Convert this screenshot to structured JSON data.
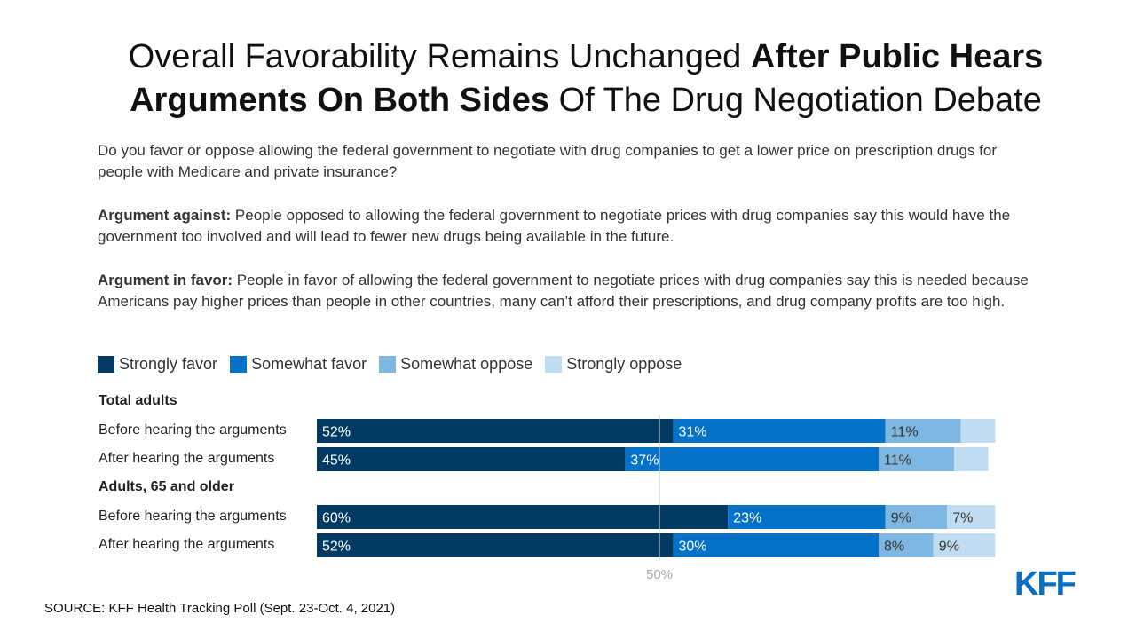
{
  "title": {
    "part1": "Overall Favorability Remains Unchanged ",
    "bold1": "After Public Hears Arguments On Both Sides",
    "part2": " Of The Drug Negotiation Debate"
  },
  "question": "Do you favor or oppose allowing the federal government to negotiate with drug companies to get a lower price on prescription drugs for people with Medicare and private insurance?",
  "argument_against": {
    "label": "Argument against:",
    "text": " People opposed to allowing the federal government to negotiate prices with drug companies say this would have the government too involved and will lead to fewer new drugs being available in the future."
  },
  "argument_favor": {
    "label": "Argument in favor:",
    "text": " People in favor of allowing the federal government to negotiate prices with drug companies say this is needed because Americans pay higher prices than people in other countries, many can’t afford their prescriptions, and drug company profits are too high."
  },
  "chart_data": {
    "type": "bar",
    "orientation": "horizontal",
    "stacked": true,
    "xlim": [
      0,
      100
    ],
    "reference_line": {
      "value": 50,
      "label": "50%"
    },
    "legend_placement": "top-left",
    "series": [
      {
        "name": "Strongly favor",
        "color": "#003a63"
      },
      {
        "name": "Somewhat favor",
        "color": "#0572c9"
      },
      {
        "name": "Somewhat oppose",
        "color": "#7eb8e2"
      },
      {
        "name": "Strongly oppose",
        "color": "#bfdcf1"
      }
    ],
    "groups": [
      {
        "name": "Total adults",
        "rows": [
          {
            "label": "Before hearing the arguments",
            "values": [
              52,
              31,
              11,
              5
            ],
            "labels": [
              "52%",
              "31%",
              "11%",
              ""
            ]
          },
          {
            "label": "After hearing the arguments",
            "values": [
              45,
              37,
              11,
              5
            ],
            "labels": [
              "45%",
              "37%",
              "11%",
              ""
            ]
          }
        ]
      },
      {
        "name": "Adults, 65 and older",
        "rows": [
          {
            "label": "Before hearing the arguments",
            "values": [
              60,
              23,
              9,
              7
            ],
            "labels": [
              "60%",
              "23%",
              "9%",
              "7%"
            ]
          },
          {
            "label": "After hearing the arguments",
            "values": [
              52,
              30,
              8,
              9
            ],
            "labels": [
              "52%",
              "30%",
              "8%",
              "9%"
            ]
          }
        ]
      }
    ]
  },
  "source": "SOURCE: KFF Health Tracking Poll (Sept. 23-Oct. 4, 2021)",
  "logo": "KFF"
}
